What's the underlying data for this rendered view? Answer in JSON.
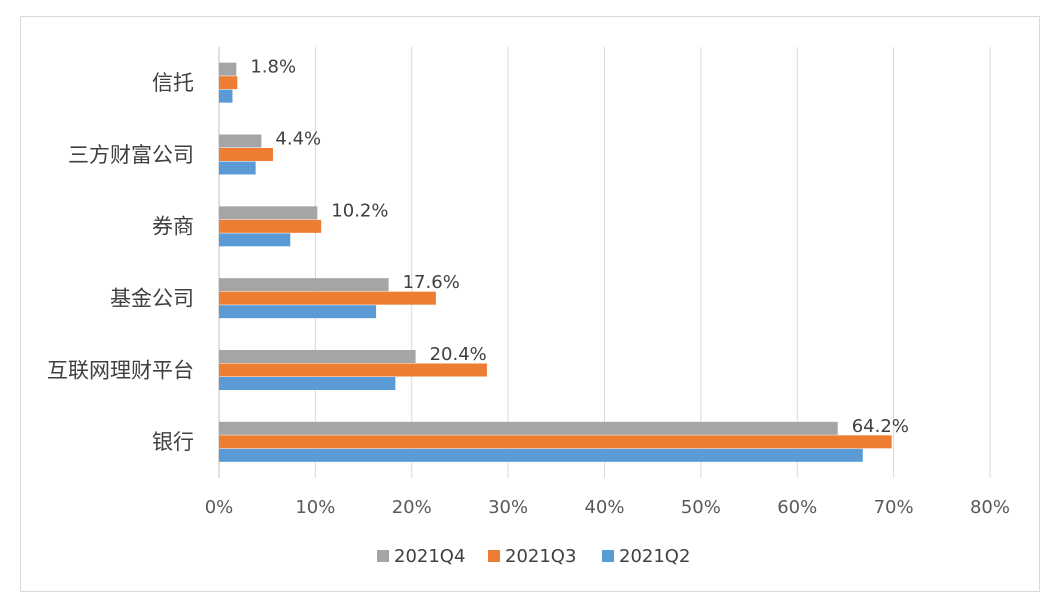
{
  "chart_data": {
    "type": "bar",
    "orientation": "horizontal",
    "categories": [
      "信托",
      "三方财富公司",
      "券商",
      "基金公司",
      "互联网理财平台",
      "银行"
    ],
    "series": [
      {
        "name": "2021Q4",
        "color": "#a5a5a5",
        "values": [
          1.8,
          4.4,
          10.2,
          17.6,
          20.4,
          64.2
        ]
      },
      {
        "name": "2021Q3",
        "color": "#ed7d31",
        "values": [
          1.9,
          5.6,
          10.6,
          22.5,
          27.8,
          69.8
        ]
      },
      {
        "name": "2021Q2",
        "color": "#5b9bd5",
        "values": [
          1.4,
          3.8,
          7.4,
          16.3,
          18.3,
          66.8
        ]
      }
    ],
    "data_labels": [
      "1.8%",
      "4.4%",
      "10.2%",
      "17.6%",
      "20.4%",
      "64.2%"
    ],
    "xlim": [
      0,
      80
    ],
    "xticks": [
      0,
      10,
      20,
      30,
      40,
      50,
      60,
      70,
      80
    ],
    "xtick_labels": [
      "0%",
      "10%",
      "20%",
      "30%",
      "40%",
      "50%",
      "60%",
      "70%",
      "80%"
    ],
    "grid": true,
    "legend": "bottom-center",
    "title": "",
    "xlabel": "",
    "ylabel": ""
  }
}
